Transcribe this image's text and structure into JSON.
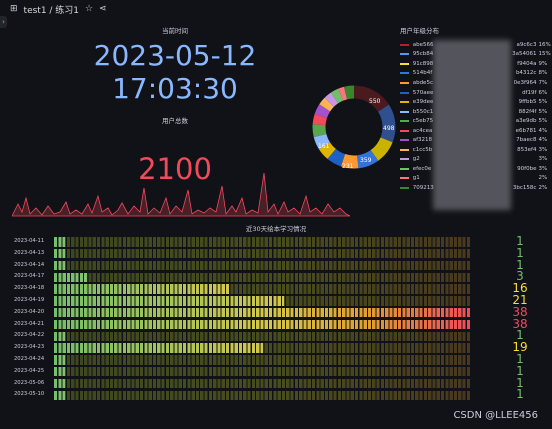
{
  "header": {
    "breadcrumb": "test1 / 练习1"
  },
  "clock_panel": {
    "title": "当前时间",
    "date": "2023-05-12",
    "time": "17:03:30"
  },
  "stat_panel": {
    "title": "用户总数",
    "value": "2100",
    "color": "#f2495c"
  },
  "donut_panel": {
    "title": "用户年级分布",
    "labels": [
      "550",
      "498",
      "359",
      "231",
      "161"
    ],
    "legend": [
      {
        "name": "abe566",
        "tail": "a9c6c3",
        "pct": "16%",
        "color": "#c4162a"
      },
      {
        "name": "95cb84",
        "tail": "3a54061",
        "pct": "15%",
        "color": "#5794f2"
      },
      {
        "name": "91c898",
        "tail": "f9404a",
        "pct": "9%",
        "color": "#fade2a"
      },
      {
        "name": "514b4f",
        "tail": "b4312c",
        "pct": "8%",
        "color": "#3274d9"
      },
      {
        "name": "abde5c",
        "tail": "0e3f964",
        "pct": "7%",
        "color": "#ff9830"
      },
      {
        "name": "570aee",
        "tail": "df19f",
        "pct": "6%",
        "color": "#1f60c4"
      },
      {
        "name": "e39dee",
        "tail": "9ffbb5",
        "pct": "5%",
        "color": "#e0b400"
      },
      {
        "name": "b550c1",
        "tail": "882f4f",
        "pct": "5%",
        "color": "#8ab8ff"
      },
      {
        "name": "c5eb75",
        "tail": "a3e9db",
        "pct": "5%",
        "color": "#56a64b"
      },
      {
        "name": "ac4cea",
        "tail": "e6b781",
        "pct": "4%",
        "color": "#f2495c"
      },
      {
        "name": "af3218",
        "tail": "7baec8",
        "pct": "4%",
        "color": "#a352cc"
      },
      {
        "name": "c1cc5b",
        "tail": "853ef4",
        "pct": "3%",
        "color": "#ffb357"
      },
      {
        "name": "g2",
        "tail": "",
        "pct": "3%",
        "color": "#ca95e5"
      },
      {
        "name": "efec0e",
        "tail": "90f0be",
        "pct": "3%",
        "color": "#73bf69"
      },
      {
        "name": "g1",
        "tail": "",
        "pct": "2%",
        "color": "#ff7383"
      },
      {
        "name": "709213",
        "tail": "3bc158c",
        "pct": "2%",
        "color": "#37872d"
      }
    ]
  },
  "gauge_panel": {
    "title": "近30天绘本学习情况",
    "max": 38,
    "rows": [
      {
        "date": "2023-04-11",
        "value": 1
      },
      {
        "date": "2023-04-13",
        "value": 1
      },
      {
        "date": "2023-04-14",
        "value": 1
      },
      {
        "date": "2023-04-17",
        "value": 3
      },
      {
        "date": "2023-04-18",
        "value": 16
      },
      {
        "date": "2023-04-19",
        "value": 21
      },
      {
        "date": "2023-04-20",
        "value": 38
      },
      {
        "date": "2023-04-21",
        "value": 38
      },
      {
        "date": "2023-04-22",
        "value": 1
      },
      {
        "date": "2023-04-23",
        "value": 19
      },
      {
        "date": "2023-04-24",
        "value": 1
      },
      {
        "date": "2023-04-25",
        "value": 1
      },
      {
        "date": "2023-05-06",
        "value": 1
      },
      {
        "date": "2023-05-10",
        "value": 1
      }
    ]
  },
  "watermark": "CSDN @LLEE456"
}
